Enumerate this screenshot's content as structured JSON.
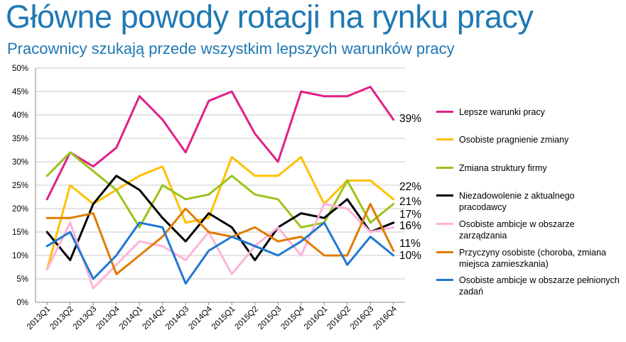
{
  "title": "Główne powody rotacji na rynku pracy",
  "subtitle": "Pracownicy szukają przede wszystkim lepszych warunków pracy",
  "chart_data": {
    "type": "line",
    "categories": [
      "2013Q1",
      "2013Q2",
      "2013Q3",
      "2013Q4",
      "2014Q1",
      "2014Q2",
      "2014Q3",
      "2014Q4",
      "2015Q1",
      "2015Q2",
      "2015Q3",
      "2015Q4",
      "2016Q1",
      "2016Q2",
      "2016Q3",
      "2016Q4"
    ],
    "ylim": [
      0,
      50
    ],
    "yticks": [
      "0%",
      "5%",
      "10%",
      "15%",
      "20%",
      "25%",
      "30%",
      "35%",
      "40%",
      "45%",
      "50%"
    ],
    "grid": true,
    "legend_position": "right",
    "series": [
      {
        "name": "Lepsze warunki pracy",
        "color": "#e0218a",
        "end_label": "39%",
        "values": [
          22,
          32,
          29,
          33,
          44,
          39,
          32,
          43,
          45,
          36,
          30,
          45,
          44,
          44,
          46,
          39
        ]
      },
      {
        "name": "Osobiste pragnienie zmiany",
        "color": "#ffc000",
        "end_label": "22%",
        "values": [
          7,
          25,
          21,
          24,
          27,
          29,
          17,
          18,
          31,
          27,
          27,
          31,
          21,
          26,
          26,
          22
        ]
      },
      {
        "name": "Zmiana struktury firmy",
        "color": "#9bc31c",
        "end_label": "21%",
        "values": [
          27,
          32,
          28,
          24,
          16,
          25,
          22,
          23,
          27,
          23,
          22,
          16,
          17,
          26,
          17,
          21
        ]
      },
      {
        "name": "Niezadowolenie z aktualnego pracodawcy",
        "color": "#000000",
        "end_label": "17%",
        "values": [
          15,
          9,
          21,
          27,
          24,
          18,
          13,
          19,
          16,
          9,
          16,
          19,
          18,
          22,
          15,
          17
        ]
      },
      {
        "name": "Osobiste ambicje w obszarze zarządzania",
        "color": "#ffb3d9",
        "end_label": "16%",
        "values": [
          7,
          17,
          3,
          8,
          13,
          12,
          9,
          15,
          6,
          12,
          16,
          10,
          21,
          20,
          15,
          16
        ]
      },
      {
        "name": "Przyczyny osobiste (choroba, zmiana miejsca zamieszkania)",
        "color": "#e07b00",
        "end_label": "11%",
        "values": [
          18,
          18,
          19,
          6,
          10,
          14,
          20,
          15,
          14,
          16,
          13,
          14,
          10,
          10,
          21,
          11
        ]
      },
      {
        "name": "Osobiste ambicje w obszarze pełnionych zadań",
        "color": "#1f78d1",
        "end_label": "10%",
        "values": [
          12,
          15,
          5,
          10,
          17,
          16,
          4,
          11,
          14,
          12,
          10,
          13,
          17,
          8,
          14,
          10
        ]
      }
    ]
  }
}
